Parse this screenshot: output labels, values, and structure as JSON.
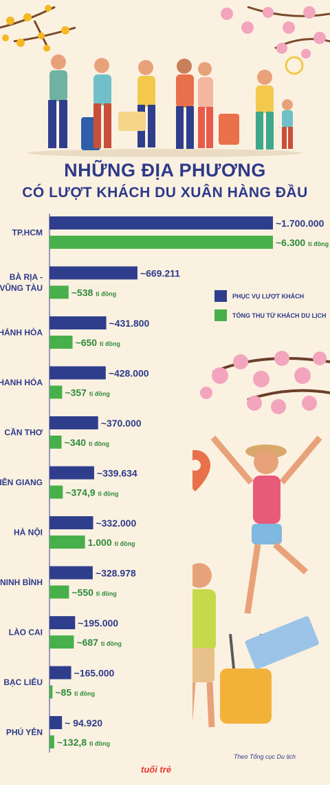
{
  "title": {
    "line1": "NHỮNG ĐỊA PHƯƠNG",
    "line2": "CÓ LƯỢT KHÁCH DU XUÂN HÀNG ĐẦU"
  },
  "legend": {
    "guests_label": "PHỤC VỤ LƯỢT KHÁCH",
    "revenue_label": "TỔNG THU TỪ KHÁCH DU LỊCH"
  },
  "colors": {
    "guests": "#2f3e8c",
    "revenue": "#48b04a",
    "title": "#2c3a8a",
    "background": "#fbf1e1"
  },
  "source": "Theo Tổng cục Du lịch",
  "brand": "tuổi trẻ",
  "chart_data": {
    "type": "bar",
    "orientation": "horizontal",
    "categories": [
      [
        "TP.HCM"
      ],
      [
        "BÀ RỊA -",
        "VŨNG TÀU"
      ],
      [
        "KHÁNH HÒA"
      ],
      [
        "THANH HÓA"
      ],
      [
        "CẦN THƠ"
      ],
      [
        "KIÊN GIANG"
      ],
      [
        "HÀ NỘI"
      ],
      [
        "NINH BÌNH"
      ],
      [
        "LÀO CAI"
      ],
      [
        "BẠC LIÊU"
      ],
      [
        "PHÚ YÊN"
      ]
    ],
    "series": [
      {
        "name": "PHỤC VỤ LƯỢT KHÁCH",
        "values": [
          1700000,
          669211,
          431800,
          428000,
          370000,
          339634,
          332000,
          328978,
          195000,
          165000,
          94920
        ],
        "labels": [
          "~1.700.000",
          "~669.211",
          "~431.800",
          "~428.000",
          "~370.000",
          "~339.634",
          "~332.000",
          "~328.978",
          "~195.000",
          "~165.000",
          "~ 94.920"
        ],
        "unit": ""
      },
      {
        "name": "TỔNG THU TỪ KHÁCH DU LỊCH",
        "values": [
          6300,
          538,
          650,
          357,
          340,
          374.9,
          1000,
          550,
          687,
          85,
          132.8
        ],
        "labels": [
          "~6.300",
          "~538",
          "~650",
          "~357",
          "~340",
          "~374,9",
          "1.000",
          "~550",
          "~687",
          "~85",
          "~132,8"
        ],
        "unit": "tỉ đồng"
      }
    ]
  }
}
